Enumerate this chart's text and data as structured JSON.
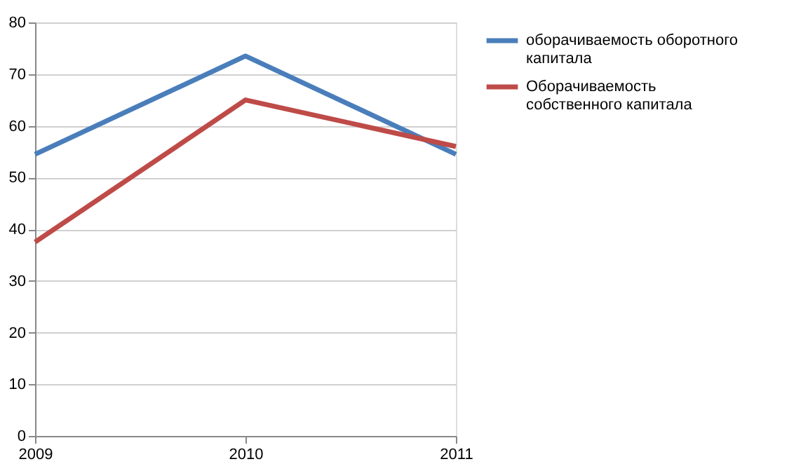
{
  "chart_data": {
    "type": "line",
    "categories": [
      "2009",
      "2010",
      "2011"
    ],
    "series": [
      {
        "name": "оборачиваемость оборотного капитала",
        "color": "#4a7ebb",
        "values": [
          54.5,
          73.5,
          54.5
        ]
      },
      {
        "name": "Оборачиваемость собственного капитала",
        "color": "#be4b48",
        "values": [
          37.5,
          65,
          56
        ]
      }
    ],
    "ylim": [
      0,
      80
    ],
    "yticks": [
      0,
      10,
      20,
      30,
      40,
      50,
      60,
      70,
      80
    ],
    "grid": "y",
    "legend": "right",
    "marker": "none",
    "line_style": "solid"
  }
}
